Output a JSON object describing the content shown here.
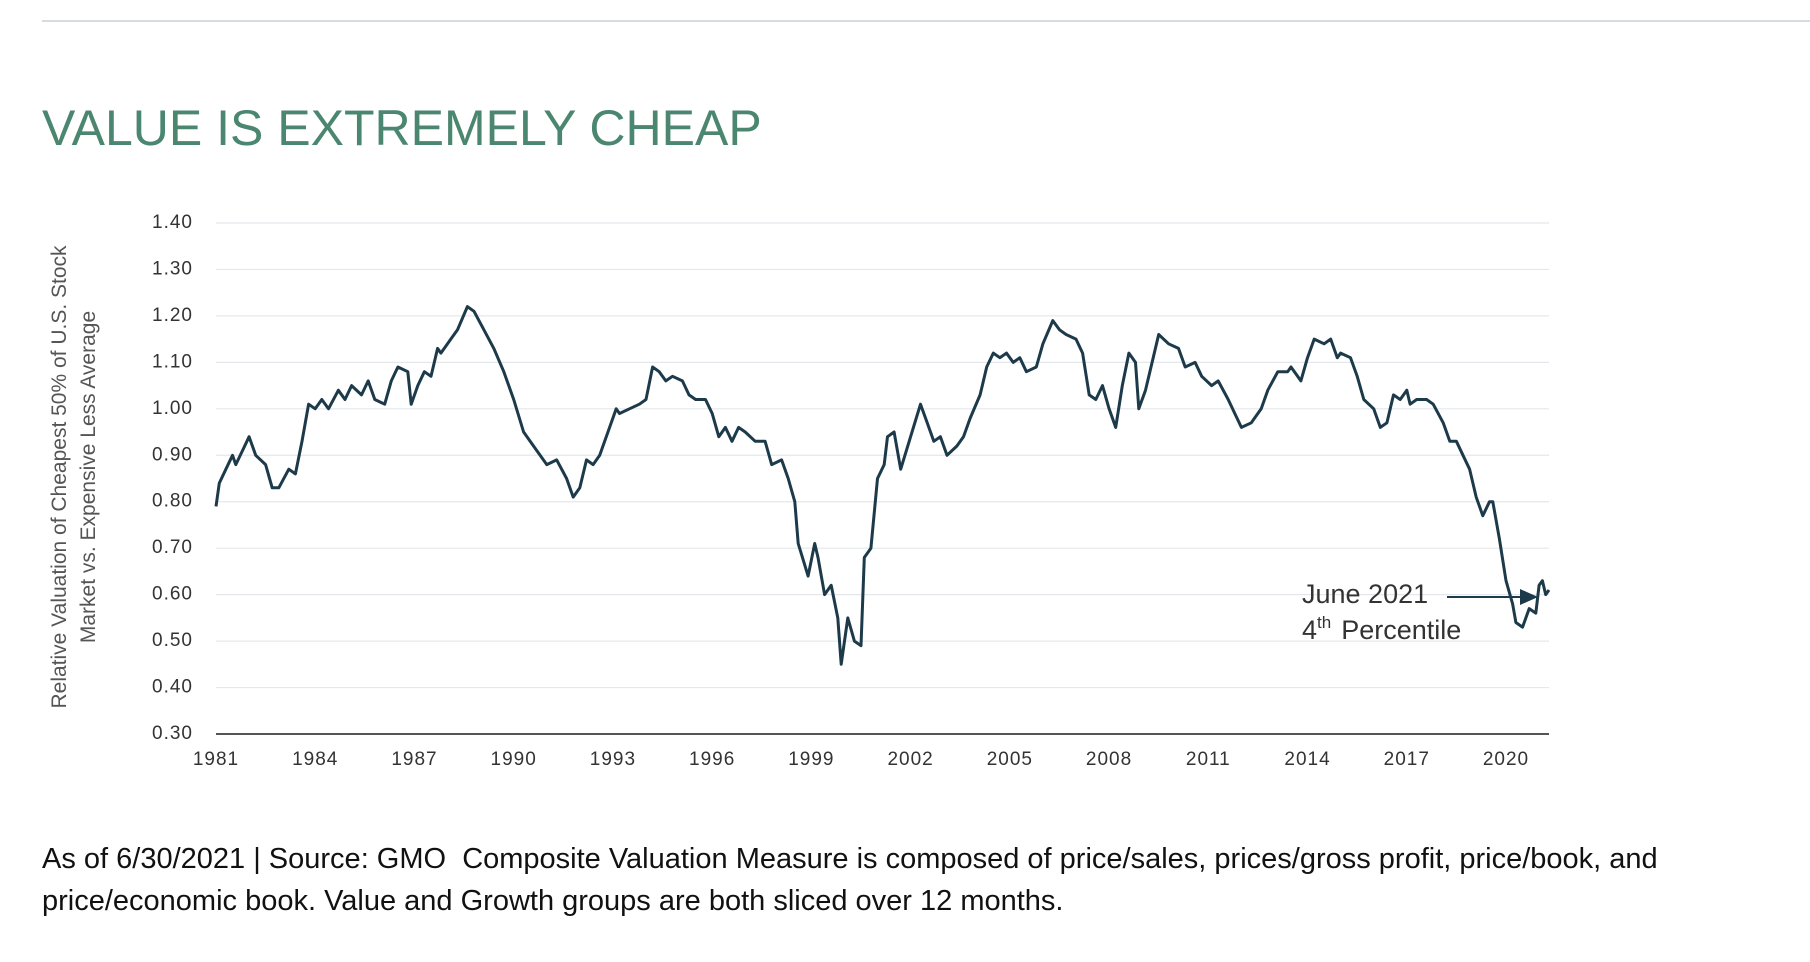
{
  "chart_data": {
    "type": "line",
    "title": "VALUE IS EXTREMELY CHEAP",
    "y_label": [
      "Relative Valuation of Cheapest 50% of U.S. Stock",
      "Market vs. Expensive Less Average"
    ],
    "color": "#1d3a4a",
    "grid": true,
    "xlim": [
      1981,
      2021.3
    ],
    "xticks": [
      1981,
      1984,
      1987,
      1990,
      1993,
      1996,
      1999,
      2002,
      2005,
      2008,
      2011,
      2014,
      2017,
      2020
    ],
    "ylim": [
      0.3,
      1.4
    ],
    "yticks": [
      {
        "value": 0.3,
        "label": "0.30"
      },
      {
        "value": 0.4,
        "label": "0.40"
      },
      {
        "value": 0.5,
        "label": "0.50"
      },
      {
        "value": 0.6,
        "label": "0.60"
      },
      {
        "value": 0.7,
        "label": "0.70"
      },
      {
        "value": 0.8,
        "label": "0.80"
      },
      {
        "value": 0.9,
        "label": "0.90"
      },
      {
        "value": 1.0,
        "label": "1.00"
      },
      {
        "value": 1.1,
        "label": "1.10"
      },
      {
        "value": 1.2,
        "label": "1.20"
      },
      {
        "value": 1.3,
        "label": "1.30"
      },
      {
        "value": 1.4,
        "label": "1.40"
      }
    ],
    "x": [
      1981.0,
      1981.1,
      1981.3,
      1981.5,
      1981.6,
      1981.8,
      1982.0,
      1982.2,
      1982.5,
      1982.7,
      1982.9,
      1983.2,
      1983.4,
      1983.6,
      1983.8,
      1984.0,
      1984.2,
      1984.4,
      1984.7,
      1984.9,
      1985.1,
      1985.4,
      1985.6,
      1985.8,
      1986.1,
      1986.3,
      1986.5,
      1986.8,
      1986.9,
      1987.1,
      1987.3,
      1987.5,
      1987.7,
      1987.8,
      1988.1,
      1988.3,
      1988.6,
      1988.8,
      1989.1,
      1989.4,
      1989.7,
      1990.0,
      1990.3,
      1990.7,
      1991.0,
      1991.3,
      1991.6,
      1991.8,
      1992.0,
      1992.2,
      1992.4,
      1992.6,
      1992.9,
      1993.1,
      1993.2,
      1993.5,
      1993.8,
      1994.0,
      1994.2,
      1994.4,
      1994.6,
      1994.8,
      1995.1,
      1995.3,
      1995.5,
      1995.8,
      1996.0,
      1996.2,
      1996.4,
      1996.6,
      1996.8,
      1997.0,
      1997.3,
      1997.6,
      1997.8,
      1998.1,
      1998.3,
      1998.5,
      1998.6,
      1998.9,
      1999.1,
      1999.2,
      1999.4,
      1999.6,
      1999.8,
      1999.9,
      2000.1,
      2000.3,
      2000.5,
      2000.6,
      2000.8,
      2001.0,
      2001.2,
      2001.3,
      2001.5,
      2001.7,
      2002.0,
      2002.3,
      2002.5,
      2002.7,
      2002.9,
      2003.1,
      2003.4,
      2003.6,
      2003.8,
      2004.1,
      2004.3,
      2004.5,
      2004.7,
      2004.9,
      2005.1,
      2005.3,
      2005.5,
      2005.8,
      2006.0,
      2006.3,
      2006.5,
      2006.7,
      2007.0,
      2007.2,
      2007.4,
      2007.6,
      2007.8,
      2008.0,
      2008.2,
      2008.4,
      2008.6,
      2008.8,
      2008.9,
      2009.1,
      2009.3,
      2009.5,
      2009.8,
      2010.1,
      2010.3,
      2010.6,
      2010.8,
      2011.1,
      2011.3,
      2011.6,
      2011.8,
      2012.0,
      2012.3,
      2012.6,
      2012.8,
      2013.1,
      2013.4,
      2013.5,
      2013.8,
      2014.0,
      2014.2,
      2014.5,
      2014.7,
      2014.9,
      2015.0,
      2015.3,
      2015.5,
      2015.7,
      2016.0,
      2016.2,
      2016.4,
      2016.6,
      2016.8,
      2017.0,
      2017.1,
      2017.3,
      2017.6,
      2017.8,
      2018.1,
      2018.3,
      2018.5,
      2018.7,
      2018.9,
      2019.1,
      2019.3,
      2019.5,
      2019.6,
      2019.8,
      2020.0,
      2020.2,
      2020.3,
      2020.5,
      2020.7,
      2020.9,
      2021.0,
      2021.1,
      2021.2,
      2021.3
    ],
    "values": [
      0.79,
      0.84,
      0.87,
      0.9,
      0.88,
      0.91,
      0.94,
      0.9,
      0.88,
      0.83,
      0.83,
      0.87,
      0.86,
      0.93,
      1.01,
      1.0,
      1.02,
      1.0,
      1.04,
      1.02,
      1.05,
      1.03,
      1.06,
      1.02,
      1.01,
      1.06,
      1.09,
      1.08,
      1.01,
      1.05,
      1.08,
      1.07,
      1.13,
      1.12,
      1.15,
      1.17,
      1.22,
      1.21,
      1.17,
      1.13,
      1.08,
      1.02,
      0.95,
      0.91,
      0.88,
      0.89,
      0.85,
      0.81,
      0.83,
      0.89,
      0.88,
      0.9,
      0.96,
      1.0,
      0.99,
      1.0,
      1.01,
      1.02,
      1.09,
      1.08,
      1.06,
      1.07,
      1.06,
      1.03,
      1.02,
      1.02,
      0.99,
      0.94,
      0.96,
      0.93,
      0.96,
      0.95,
      0.93,
      0.93,
      0.88,
      0.89,
      0.85,
      0.8,
      0.71,
      0.64,
      0.71,
      0.68,
      0.6,
      0.62,
      0.55,
      0.45,
      0.55,
      0.5,
      0.49,
      0.68,
      0.7,
      0.85,
      0.88,
      0.94,
      0.95,
      0.87,
      0.94,
      1.01,
      0.97,
      0.93,
      0.94,
      0.9,
      0.92,
      0.94,
      0.98,
      1.03,
      1.09,
      1.12,
      1.11,
      1.12,
      1.1,
      1.11,
      1.08,
      1.09,
      1.14,
      1.19,
      1.17,
      1.16,
      1.15,
      1.12,
      1.03,
      1.02,
      1.05,
      1.0,
      0.96,
      1.05,
      1.12,
      1.1,
      1.0,
      1.04,
      1.1,
      1.16,
      1.14,
      1.13,
      1.09,
      1.1,
      1.07,
      1.05,
      1.06,
      1.02,
      0.99,
      0.96,
      0.97,
      1.0,
      1.04,
      1.08,
      1.08,
      1.09,
      1.06,
      1.11,
      1.15,
      1.14,
      1.15,
      1.11,
      1.12,
      1.11,
      1.07,
      1.02,
      1.0,
      0.96,
      0.97,
      1.03,
      1.02,
      1.04,
      1.01,
      1.02,
      1.02,
      1.01,
      0.97,
      0.93,
      0.93,
      0.9,
      0.87,
      0.81,
      0.77,
      0.8,
      0.8,
      0.72,
      0.63,
      0.58,
      0.54,
      0.53,
      0.57,
      0.56,
      0.62,
      0.63,
      0.6,
      0.61
    ],
    "annotation": {
      "line1": "June 2021",
      "ordinal": "4",
      "suffix": "th",
      "line2": "Percentile"
    }
  },
  "footnote": "As of 6/30/2021 | Source: GMO  Composite Valuation Measure is composed of price/sales, prices/gross profit, price/book, and price/economic book. Value and Growth groups are both sliced over 12 months."
}
